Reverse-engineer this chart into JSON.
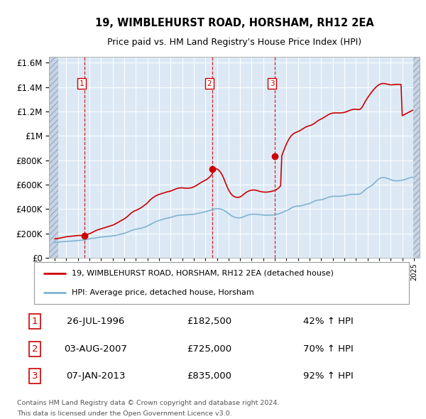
{
  "title1": "19, WIMBLEHURST ROAD, HORSHAM, RH12 2EA",
  "title2": "Price paid vs. HM Land Registry's House Price Index (HPI)",
  "legend_line1": "19, WIMBLEHURST ROAD, HORSHAM, RH12 2EA (detached house)",
  "legend_line2": "HPI: Average price, detached house, Horsham",
  "transactions": [
    {
      "num": 1,
      "date": "26-JUL-1996",
      "price": 182500,
      "pct": "42%",
      "year_x": 1996.57
    },
    {
      "num": 2,
      "date": "03-AUG-2007",
      "price": 725000,
      "pct": "70%",
      "year_x": 2007.59
    },
    {
      "num": 3,
      "date": "07-JAN-2013",
      "price": 835000,
      "pct": "92%",
      "year_x": 2013.02
    }
  ],
  "footer1": "Contains HM Land Registry data © Crown copyright and database right 2024.",
  "footer2": "This data is licensed under the Open Government Licence v3.0.",
  "price_color": "#cc0000",
  "hpi_color": "#7fb3d3",
  "background_color": "#dce9f5",
  "ylim": [
    0,
    1650000
  ],
  "yticks": [
    0,
    200000,
    400000,
    600000,
    800000,
    1000000,
    1200000,
    1400000,
    1600000
  ],
  "xlim_start": 1993.5,
  "xlim_end": 2025.5,
  "hatch_left_end": 1994.3,
  "hatch_right_start": 2024.95,
  "hpi_data_x": [
    1994.0,
    1994.1,
    1994.2,
    1994.3,
    1994.4,
    1994.5,
    1994.6,
    1994.7,
    1994.8,
    1994.9,
    1995.0,
    1995.1,
    1995.2,
    1995.3,
    1995.4,
    1995.5,
    1995.6,
    1995.7,
    1995.8,
    1995.9,
    1996.0,
    1996.1,
    1996.2,
    1996.3,
    1996.4,
    1996.5,
    1996.6,
    1996.7,
    1996.8,
    1996.9,
    1997.0,
    1997.1,
    1997.2,
    1997.3,
    1997.4,
    1997.5,
    1997.6,
    1997.7,
    1997.8,
    1997.9,
    1998.0,
    1998.1,
    1998.2,
    1998.3,
    1998.4,
    1998.5,
    1998.6,
    1998.7,
    1998.8,
    1998.9,
    1999.0,
    1999.1,
    1999.2,
    1999.3,
    1999.4,
    1999.5,
    1999.6,
    1999.7,
    1999.8,
    1999.9,
    2000.0,
    2000.1,
    2000.2,
    2000.3,
    2000.4,
    2000.5,
    2000.6,
    2000.7,
    2000.8,
    2000.9,
    2001.0,
    2001.1,
    2001.2,
    2001.3,
    2001.4,
    2001.5,
    2001.6,
    2001.7,
    2001.8,
    2001.9,
    2002.0,
    2002.1,
    2002.2,
    2002.3,
    2002.4,
    2002.5,
    2002.6,
    2002.7,
    2002.8,
    2002.9,
    2003.0,
    2003.1,
    2003.2,
    2003.3,
    2003.4,
    2003.5,
    2003.6,
    2003.7,
    2003.8,
    2003.9,
    2004.0,
    2004.1,
    2004.2,
    2004.3,
    2004.4,
    2004.5,
    2004.6,
    2004.7,
    2004.8,
    2004.9,
    2005.0,
    2005.1,
    2005.2,
    2005.3,
    2005.4,
    2005.5,
    2005.6,
    2005.7,
    2005.8,
    2005.9,
    2006.0,
    2006.1,
    2006.2,
    2006.3,
    2006.4,
    2006.5,
    2006.6,
    2006.7,
    2006.8,
    2006.9,
    2007.0,
    2007.1,
    2007.2,
    2007.3,
    2007.4,
    2007.5,
    2007.6,
    2007.7,
    2007.8,
    2007.9,
    2008.0,
    2008.1,
    2008.2,
    2008.3,
    2008.4,
    2008.5,
    2008.6,
    2008.7,
    2008.8,
    2008.9,
    2009.0,
    2009.1,
    2009.2,
    2009.3,
    2009.4,
    2009.5,
    2009.6,
    2009.7,
    2009.8,
    2009.9,
    2010.0,
    2010.1,
    2010.2,
    2010.3,
    2010.4,
    2010.5,
    2010.6,
    2010.7,
    2010.8,
    2010.9,
    2011.0,
    2011.1,
    2011.2,
    2011.3,
    2011.4,
    2011.5,
    2011.6,
    2011.7,
    2011.8,
    2011.9,
    2012.0,
    2012.1,
    2012.2,
    2012.3,
    2012.4,
    2012.5,
    2012.6,
    2012.7,
    2012.8,
    2012.9,
    2013.0,
    2013.1,
    2013.2,
    2013.3,
    2013.4,
    2013.5,
    2013.6,
    2013.7,
    2013.8,
    2013.9,
    2014.0,
    2014.1,
    2014.2,
    2014.3,
    2014.4,
    2014.5,
    2014.6,
    2014.7,
    2014.8,
    2014.9,
    2015.0,
    2015.1,
    2015.2,
    2015.3,
    2015.4,
    2015.5,
    2015.6,
    2015.7,
    2015.8,
    2015.9,
    2016.0,
    2016.1,
    2016.2,
    2016.3,
    2016.4,
    2016.5,
    2016.6,
    2016.7,
    2016.8,
    2016.9,
    2017.0,
    2017.1,
    2017.2,
    2017.3,
    2017.4,
    2017.5,
    2017.6,
    2017.7,
    2017.8,
    2017.9,
    2018.0,
    2018.1,
    2018.2,
    2018.3,
    2018.4,
    2018.5,
    2018.6,
    2018.7,
    2018.8,
    2018.9,
    2019.0,
    2019.1,
    2019.2,
    2019.3,
    2019.4,
    2019.5,
    2019.6,
    2019.7,
    2019.8,
    2019.9,
    2020.0,
    2020.1,
    2020.2,
    2020.3,
    2020.4,
    2020.5,
    2020.6,
    2020.7,
    2020.8,
    2020.9,
    2021.0,
    2021.1,
    2021.2,
    2021.3,
    2021.4,
    2021.5,
    2021.6,
    2021.7,
    2021.8,
    2021.9,
    2022.0,
    2022.1,
    2022.2,
    2022.3,
    2022.4,
    2022.5,
    2022.6,
    2022.7,
    2022.8,
    2022.9,
    2023.0,
    2023.1,
    2023.2,
    2023.3,
    2023.4,
    2023.5,
    2023.6,
    2023.7,
    2023.8,
    2023.9,
    2024.0,
    2024.1,
    2024.2,
    2024.3,
    2024.4,
    2024.5,
    2024.6,
    2024.7,
    2024.8,
    2024.9
  ],
  "hpi_data_y": [
    125000,
    126000,
    127000,
    128000,
    129000,
    130000,
    131000,
    132000,
    132500,
    133000,
    133500,
    134000,
    134500,
    135000,
    135500,
    136000,
    137000,
    138000,
    139000,
    140000,
    141000,
    142000,
    143000,
    144000,
    144500,
    145000,
    147000,
    149000,
    151000,
    153000,
    155000,
    157000,
    158000,
    159000,
    160000,
    161000,
    163000,
    165000,
    167000,
    168000,
    169000,
    170000,
    171000,
    172000,
    173000,
    174000,
    175000,
    176000,
    177000,
    178000,
    179000,
    180000,
    182000,
    184000,
    186000,
    188000,
    191000,
    193000,
    195000,
    197000,
    200000,
    203000,
    206000,
    210000,
    214000,
    218000,
    222000,
    226000,
    229000,
    231000,
    233000,
    235000,
    237000,
    239000,
    241000,
    243000,
    246000,
    249000,
    252000,
    255000,
    260000,
    265000,
    270000,
    275000,
    280000,
    285000,
    290000,
    295000,
    299000,
    302000,
    305000,
    308000,
    311000,
    314000,
    317000,
    320000,
    322000,
    324000,
    326000,
    328000,
    330000,
    333000,
    336000,
    339000,
    342000,
    345000,
    347000,
    348000,
    349000,
    349500,
    350000,
    350500,
    351000,
    351500,
    352000,
    352500,
    353000,
    353500,
    354000,
    355000,
    356000,
    358000,
    360000,
    362000,
    364000,
    366000,
    368000,
    370000,
    372000,
    374000,
    377000,
    380000,
    383000,
    386000,
    389000,
    392000,
    395000,
    398000,
    400000,
    402000,
    403000,
    402000,
    401000,
    399000,
    396000,
    393000,
    388000,
    382000,
    376000,
    370000,
    362000,
    355000,
    348000,
    342000,
    337000,
    333000,
    330000,
    328000,
    327000,
    326000,
    327000,
    329000,
    332000,
    336000,
    340000,
    344000,
    348000,
    351000,
    353000,
    355000,
    356000,
    357000,
    357000,
    357000,
    356000,
    355000,
    354000,
    353000,
    352000,
    351000,
    350000,
    349000,
    348000,
    348000,
    348000,
    349000,
    349000,
    350000,
    350000,
    351000,
    352000,
    354000,
    356000,
    359000,
    362000,
    366000,
    370000,
    374000,
    378000,
    382000,
    386000,
    390000,
    395000,
    400000,
    406000,
    412000,
    416000,
    419000,
    421000,
    422000,
    423000,
    424000,
    425000,
    427000,
    429000,
    432000,
    435000,
    438000,
    440000,
    442000,
    445000,
    449000,
    453000,
    458000,
    463000,
    467000,
    470000,
    472000,
    473000,
    474000,
    475000,
    477000,
    480000,
    483000,
    487000,
    491000,
    495000,
    498000,
    500000,
    502000,
    503000,
    504000,
    504000,
    504000,
    504000,
    504000,
    504000,
    505000,
    506000,
    507000,
    508000,
    510000,
    512000,
    514000,
    516000,
    518000,
    519000,
    520000,
    520000,
    520000,
    520000,
    520000,
    520000,
    522000,
    526000,
    532000,
    540000,
    549000,
    557000,
    564000,
    571000,
    577000,
    583000,
    589000,
    595000,
    603000,
    612000,
    622000,
    632000,
    641000,
    648000,
    653000,
    656000,
    657000,
    657000,
    656000,
    654000,
    651000,
    648000,
    645000,
    641000,
    637000,
    634000,
    632000,
    631000,
    631000,
    631000,
    632000,
    633000,
    634000,
    635000,
    637000,
    640000,
    643000,
    647000,
    651000,
    654000,
    657000,
    659000,
    661000
  ],
  "price_line_x": [
    1994.0,
    1994.1,
    1994.2,
    1994.3,
    1994.4,
    1994.5,
    1994.6,
    1994.7,
    1994.8,
    1994.9,
    1995.0,
    1995.1,
    1995.2,
    1995.3,
    1995.4,
    1995.5,
    1995.6,
    1995.7,
    1995.8,
    1995.9,
    1996.0,
    1996.1,
    1996.2,
    1996.3,
    1996.4,
    1996.5,
    1996.6,
    1996.7,
    1996.8,
    1996.9,
    1997.0,
    1997.1,
    1997.2,
    1997.3,
    1997.4,
    1997.5,
    1997.6,
    1997.7,
    1997.8,
    1997.9,
    1998.0,
    1998.1,
    1998.2,
    1998.3,
    1998.4,
    1998.5,
    1998.6,
    1998.7,
    1998.8,
    1998.9,
    1999.0,
    1999.1,
    1999.2,
    1999.3,
    1999.4,
    1999.5,
    1999.6,
    1999.7,
    1999.8,
    1999.9,
    2000.0,
    2000.1,
    2000.2,
    2000.3,
    2000.4,
    2000.5,
    2000.6,
    2000.7,
    2000.8,
    2000.9,
    2001.0,
    2001.1,
    2001.2,
    2001.3,
    2001.4,
    2001.5,
    2001.6,
    2001.7,
    2001.8,
    2001.9,
    2002.0,
    2002.1,
    2002.2,
    2002.3,
    2002.4,
    2002.5,
    2002.6,
    2002.7,
    2002.8,
    2002.9,
    2003.0,
    2003.1,
    2003.2,
    2003.3,
    2003.4,
    2003.5,
    2003.6,
    2003.7,
    2003.8,
    2003.9,
    2004.0,
    2004.1,
    2004.2,
    2004.3,
    2004.4,
    2004.5,
    2004.6,
    2004.7,
    2004.8,
    2004.9,
    2005.0,
    2005.1,
    2005.2,
    2005.3,
    2005.4,
    2005.5,
    2005.6,
    2005.7,
    2005.8,
    2005.9,
    2006.0,
    2006.1,
    2006.2,
    2006.3,
    2006.4,
    2006.5,
    2006.6,
    2006.7,
    2006.8,
    2006.9,
    2007.0,
    2007.1,
    2007.2,
    2007.3,
    2007.4,
    2007.5,
    2007.6,
    2007.7,
    2007.8,
    2007.9,
    2008.0,
    2008.1,
    2008.2,
    2008.3,
    2008.4,
    2008.5,
    2008.6,
    2008.7,
    2008.8,
    2008.9,
    2009.0,
    2009.1,
    2009.2,
    2009.3,
    2009.4,
    2009.5,
    2009.6,
    2009.7,
    2009.8,
    2009.9,
    2010.0,
    2010.1,
    2010.2,
    2010.3,
    2010.4,
    2010.5,
    2010.6,
    2010.7,
    2010.8,
    2010.9,
    2011.0,
    2011.1,
    2011.2,
    2011.3,
    2011.4,
    2011.5,
    2011.6,
    2011.7,
    2011.8,
    2011.9,
    2012.0,
    2012.1,
    2012.2,
    2012.3,
    2012.4,
    2012.5,
    2012.6,
    2012.7,
    2012.8,
    2012.9,
    2013.0,
    2013.1,
    2013.2,
    2013.3,
    2013.4,
    2013.5,
    2013.6,
    2013.7,
    2013.8,
    2013.9,
    2014.0,
    2014.1,
    2014.2,
    2014.3,
    2014.4,
    2014.5,
    2014.6,
    2014.7,
    2014.8,
    2014.9,
    2015.0,
    2015.1,
    2015.2,
    2015.3,
    2015.4,
    2015.5,
    2015.6,
    2015.7,
    2015.8,
    2015.9,
    2016.0,
    2016.1,
    2016.2,
    2016.3,
    2016.4,
    2016.5,
    2016.6,
    2016.7,
    2016.8,
    2016.9,
    2017.0,
    2017.1,
    2017.2,
    2017.3,
    2017.4,
    2017.5,
    2017.6,
    2017.7,
    2017.8,
    2017.9,
    2018.0,
    2018.1,
    2018.2,
    2018.3,
    2018.4,
    2018.5,
    2018.6,
    2018.7,
    2018.8,
    2018.9,
    2019.0,
    2019.1,
    2019.2,
    2019.3,
    2019.4,
    2019.5,
    2019.6,
    2019.7,
    2019.8,
    2019.9,
    2020.0,
    2020.1,
    2020.2,
    2020.3,
    2020.4,
    2020.5,
    2020.6,
    2020.7,
    2020.8,
    2020.9,
    2021.0,
    2021.1,
    2021.2,
    2021.3,
    2021.4,
    2021.5,
    2021.6,
    2021.7,
    2021.8,
    2021.9,
    2022.0,
    2022.1,
    2022.2,
    2022.3,
    2022.4,
    2022.5,
    2022.6,
    2022.7,
    2022.8,
    2022.9,
    2023.0,
    2023.1,
    2023.2,
    2023.3,
    2023.4,
    2023.5,
    2023.6,
    2023.7,
    2023.8,
    2023.9,
    2024.0,
    2024.1,
    2024.2,
    2024.3,
    2024.4,
    2024.5,
    2024.6,
    2024.7,
    2024.8,
    2024.9
  ],
  "price_line_y": [
    155000,
    156000,
    157000,
    158000,
    160000,
    162000,
    164000,
    166000,
    168000,
    170000,
    172000,
    173000,
    174000,
    175000,
    176000,
    177000,
    178000,
    179000,
    180000,
    181000,
    182000,
    182200,
    182300,
    182400,
    182450,
    182500,
    185000,
    188000,
    191000,
    194000,
    197000,
    201000,
    205000,
    210000,
    215000,
    220000,
    224000,
    228000,
    231000,
    234000,
    237000,
    240000,
    243000,
    246000,
    249000,
    252000,
    255000,
    258000,
    261000,
    264000,
    267000,
    271000,
    276000,
    281000,
    286000,
    291000,
    297000,
    303000,
    308000,
    313000,
    318000,
    325000,
    332000,
    340000,
    349000,
    358000,
    366000,
    373000,
    379000,
    384000,
    388000,
    392000,
    397000,
    402000,
    407000,
    413000,
    420000,
    427000,
    434000,
    441000,
    450000,
    460000,
    470000,
    479000,
    487000,
    494000,
    500000,
    506000,
    511000,
    515000,
    519000,
    522000,
    525000,
    528000,
    531000,
    534000,
    537000,
    540000,
    542000,
    544000,
    547000,
    550000,
    554000,
    558000,
    562000,
    566000,
    569000,
    571000,
    572000,
    573000,
    573000,
    572000,
    571000,
    570000,
    570000,
    570000,
    571000,
    572000,
    574000,
    577000,
    581000,
    586000,
    591000,
    597000,
    603000,
    609000,
    615000,
    621000,
    626000,
    631000,
    636000,
    641000,
    648000,
    656000,
    665000,
    675000,
    690000,
    710000,
    725000,
    730000,
    728000,
    722000,
    714000,
    702000,
    688000,
    670000,
    648000,
    624000,
    600000,
    578000,
    557000,
    540000,
    526000,
    515000,
    507000,
    501000,
    497000,
    495000,
    495000,
    496000,
    499000,
    504000,
    511000,
    519000,
    527000,
    534000,
    540000,
    545000,
    549000,
    552000,
    554000,
    555000,
    555000,
    554000,
    552000,
    550000,
    547000,
    544000,
    542000,
    540000,
    539000,
    538000,
    538000,
    538000,
    539000,
    540000,
    542000,
    544000,
    546000,
    549000,
    552000,
    557000,
    563000,
    570000,
    579000,
    590000,
    835000,
    862000,
    887000,
    910000,
    932000,
    952000,
    970000,
    985000,
    998000,
    1008000,
    1016000,
    1022000,
    1027000,
    1031000,
    1035000,
    1039000,
    1044000,
    1050000,
    1056000,
    1062000,
    1068000,
    1073000,
    1077000,
    1080000,
    1083000,
    1086000,
    1090000,
    1095000,
    1101000,
    1108000,
    1115000,
    1122000,
    1128000,
    1133000,
    1138000,
    1143000,
    1148000,
    1154000,
    1160000,
    1166000,
    1172000,
    1177000,
    1181000,
    1184000,
    1186000,
    1187000,
    1188000,
    1188000,
    1188000,
    1188000,
    1188000,
    1188000,
    1189000,
    1190000,
    1192000,
    1195000,
    1198000,
    1202000,
    1206000,
    1210000,
    1213000,
    1215000,
    1217000,
    1218000,
    1218000,
    1217000,
    1215000,
    1216000,
    1220000,
    1230000,
    1245000,
    1263000,
    1280000,
    1296000,
    1311000,
    1325000,
    1338000,
    1351000,
    1363000,
    1375000,
    1386000,
    1396000,
    1405000,
    1413000,
    1419000,
    1424000,
    1427000,
    1429000,
    1429000,
    1428000,
    1426000,
    1424000,
    1422000,
    1420000,
    1418000,
    1418000,
    1419000,
    1420000,
    1421000,
    1422000,
    1422000,
    1422000,
    1421000,
    1420000,
    1165000,
    1170000,
    1175000,
    1180000,
    1185000,
    1190000,
    1195000,
    1200000,
    1205000,
    1210000
  ]
}
